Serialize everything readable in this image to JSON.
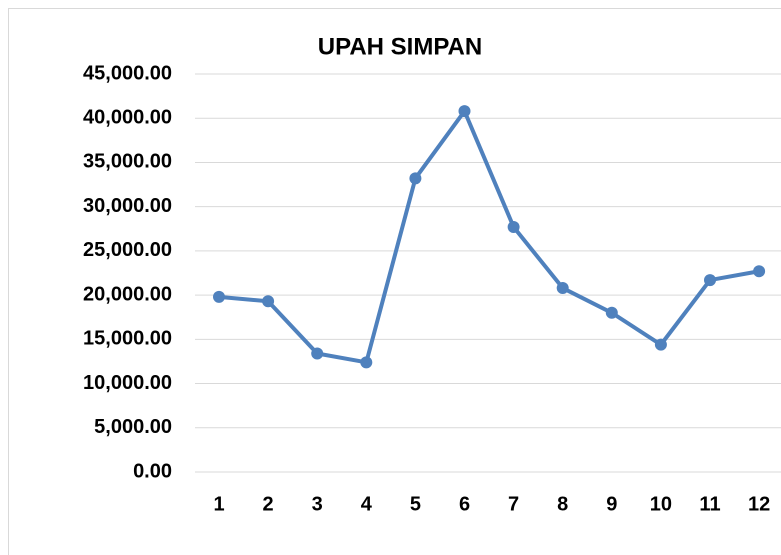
{
  "chart_data": {
    "type": "line",
    "title": "UPAH SIMPAN",
    "categories": [
      "1",
      "2",
      "3",
      "4",
      "5",
      "6",
      "7",
      "8",
      "9",
      "10",
      "11",
      "12"
    ],
    "series": [
      {
        "name": "UPAH SIMPAN",
        "color": "#4f81bd",
        "values": [
          19800,
          19300,
          13400,
          12400,
          33200,
          40800,
          27700,
          20800,
          18000,
          14400,
          21700,
          22700
        ]
      }
    ],
    "ylim": [
      0,
      45000
    ],
    "yticks": [
      {
        "value": 0,
        "label": "0.00"
      },
      {
        "value": 5000,
        "label": "5,000.00"
      },
      {
        "value": 10000,
        "label": "10,000.00"
      },
      {
        "value": 15000,
        "label": "15,000.00"
      },
      {
        "value": 20000,
        "label": "20,000.00"
      },
      {
        "value": 25000,
        "label": "25,000.00"
      },
      {
        "value": 30000,
        "label": "30,000.00"
      },
      {
        "value": 35000,
        "label": "35,000.00"
      },
      {
        "value": 40000,
        "label": "40,000.00"
      },
      {
        "value": 45000,
        "label": "45,000.00"
      }
    ],
    "grid": true
  }
}
